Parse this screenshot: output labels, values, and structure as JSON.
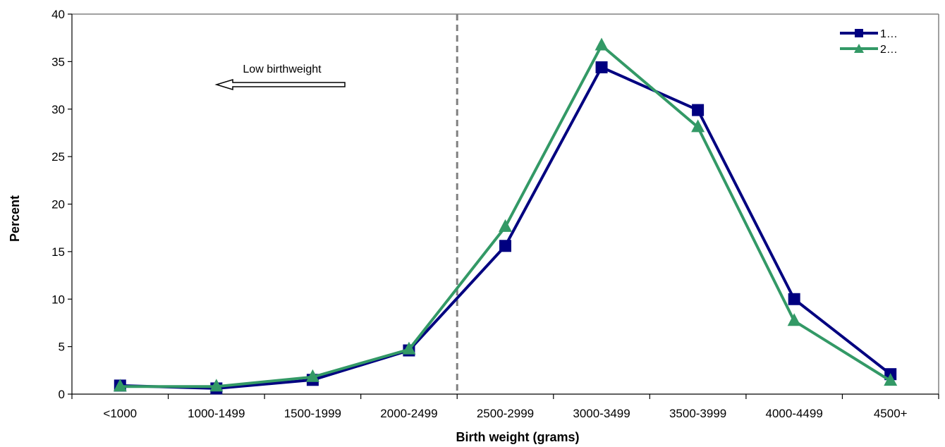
{
  "chart_data": {
    "type": "line",
    "categories": [
      "<1000",
      "1000-1499",
      "1500-1999",
      "2000-2499",
      "2500-2999",
      "3000-3499",
      "3500-3999",
      "4000-4499",
      "4500+"
    ],
    "series": [
      {
        "name": "1…",
        "color": "#000080",
        "marker": "square",
        "values": [
          0.9,
          0.6,
          1.5,
          4.6,
          15.6,
          34.4,
          29.9,
          10.0,
          2.1
        ]
      },
      {
        "name": "2…",
        "color": "#339966",
        "marker": "triangle",
        "values": [
          0.8,
          0.8,
          1.8,
          4.7,
          17.6,
          36.7,
          28.1,
          7.7,
          1.4
        ]
      }
    ],
    "xlabel": "Birth weight (grams)",
    "ylabel": "Percent",
    "ylim": [
      0,
      40
    ],
    "yticks": [
      "0",
      "5",
      "10",
      "15",
      "20",
      "25",
      "30",
      "35",
      "40"
    ],
    "grid": false,
    "legend_position": "top-right",
    "annotation": {
      "text": "Low birthweight",
      "arrow_direction": "left"
    },
    "reference_line": {
      "after_category_index": 3,
      "style": "dashed",
      "color": "#808080"
    }
  }
}
